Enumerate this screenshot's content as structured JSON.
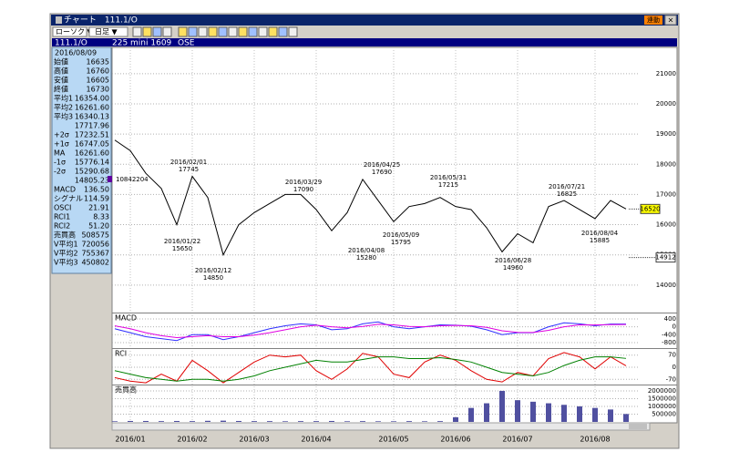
{
  "window": {
    "title": "チャート　111.1/O",
    "sync": "連動",
    "close": "×",
    "chart_kind": "ローソク ▼",
    "period": "日足 ▼"
  },
  "header": {
    "symbol": "111.1/O",
    "contract": "225 mini 1609",
    "exchange": "OSE"
  },
  "info": {
    "date": "2016/08/09",
    "rows": [
      {
        "label": "始値",
        "value": "16635",
        "color": "#000000"
      },
      {
        "label": "高値",
        "value": "16760",
        "color": "#000000"
      },
      {
        "label": "安値",
        "value": "16605",
        "color": "#000000"
      },
      {
        "label": "終値",
        "value": "16730",
        "color": "#000000"
      },
      {
        "label": "平均1",
        "value": "16354.00",
        "color": "#e00000"
      },
      {
        "label": "平均2",
        "value": "16261.60",
        "color": "#0000e0"
      },
      {
        "label": "平均3",
        "value": "16340.13",
        "color": "#008000"
      },
      {
        "value": "17717.96",
        "color": "#000000"
      },
      {
        "label": "+2σ",
        "value": "17232.51",
        "color": "#d000d0"
      },
      {
        "label": "+1σ",
        "value": "16747.05",
        "color": "#e080e0"
      },
      {
        "label": "MA",
        "value": "16261.60",
        "color": "#0000e0"
      },
      {
        "label": "-1σ",
        "value": "15776.14",
        "color": "#e080e0"
      },
      {
        "label": "-2σ",
        "value": "15290.68",
        "color": "#d000d0"
      },
      {
        "value": "14805.23",
        "color": "#000000"
      },
      {
        "label": "MACD",
        "value": "136.50",
        "color": "#0000e0"
      },
      {
        "label": "シグナル",
        "value": "114.59",
        "color": "#d000d0"
      },
      {
        "label": "OSCI",
        "value": "21.91",
        "color": "#000000"
      },
      {
        "label": "RCI1",
        "value": "8.33",
        "color": "#e00000"
      },
      {
        "label": "RCI2",
        "value": "51.20",
        "color": "#008000"
      },
      {
        "label": "売買高",
        "value": "508575",
        "color": "#000000"
      },
      {
        "label": "V平均1",
        "value": "720056",
        "color": "#e00000"
      },
      {
        "label": "V平均2",
        "value": "755367",
        "color": "#0000e0"
      },
      {
        "label": "V平均3",
        "value": "450802",
        "color": "#008000"
      }
    ]
  },
  "chart_data": [
    {
      "type": "line",
      "color": "#000000",
      "categories": [
        null,
        "2016/01",
        null,
        null,
        null,
        "2016/02",
        null,
        null,
        null,
        "2016/03",
        null,
        null,
        null,
        "2016/04",
        null,
        null,
        null,
        null,
        "2016/05",
        null,
        null,
        null,
        "2016/06",
        null,
        null,
        null,
        "2016/07",
        null,
        null,
        null,
        null,
        "2016/08",
        null,
        null
      ],
      "values": [
        18800,
        18450,
        17700,
        17200,
        16000,
        17600,
        16900,
        15000,
        16000,
        16400,
        16700,
        17000,
        17000,
        16500,
        15800,
        16400,
        17500,
        16800,
        16100,
        16600,
        16700,
        16900,
        16600,
        16500,
        15900,
        15100,
        15700,
        15400,
        16600,
        16800,
        16500,
        16200,
        16800,
        16520
      ],
      "ylim": [
        13120,
        21870
      ],
      "yticks": [
        14000,
        15000,
        16000,
        17000,
        18000,
        19000,
        20000,
        21000
      ],
      "grid": true,
      "annotations": [
        {
          "date": "2016/01/22",
          "price": 15650
        },
        {
          "date": "2016/02/01",
          "price": 17745
        },
        {
          "date": "2016/02/12",
          "price": 14850
        },
        {
          "date": "2016/03/29",
          "price": 17090
        },
        {
          "date": "2016/04/08",
          "price": 15280
        },
        {
          "date": "2016/04/25",
          "price": 17690
        },
        {
          "date": "2016/05/09",
          "price": 15795
        },
        {
          "date": "2016/05/31",
          "price": 17215
        },
        {
          "date": "2016/06/28",
          "price": 14960
        },
        {
          "date": "2016/07/21",
          "price": 16825
        },
        {
          "date": "2016/08/04",
          "price": 15885
        }
      ],
      "volume_note": 10842204,
      "price_tags": [
        {
          "value": 16520,
          "color": "#ffff00"
        },
        {
          "value": 14912,
          "color": "#ffffff"
        }
      ]
    },
    {
      "type": "line",
      "title": "MACD",
      "ylim": [
        -1080,
        630
      ],
      "yticks": [
        400,
        0,
        -400,
        -800
      ],
      "series": [
        {
          "color": "#3030ff",
          "values": [
            -100,
            -300,
            -500,
            -600,
            -700,
            -400,
            -400,
            -650,
            -500,
            -300,
            -100,
            50,
            150,
            100,
            -150,
            -100,
            150,
            250,
            0,
            -100,
            0,
            100,
            80,
            30,
            -150,
            -400,
            -300,
            -300,
            0,
            200,
            150,
            50,
            140,
            137
          ]
        },
        {
          "color": "#e000e0",
          "values": [
            50,
            -100,
            -300,
            -450,
            -550,
            -500,
            -450,
            -500,
            -500,
            -420,
            -300,
            -150,
            0,
            80,
            0,
            -50,
            20,
            130,
            100,
            20,
            0,
            50,
            70,
            50,
            -30,
            -200,
            -280,
            -290,
            -180,
            0,
            100,
            90,
            110,
            115
          ]
        }
      ]
    },
    {
      "type": "line",
      "title": "RCI",
      "ylim": [
        -100,
        100
      ],
      "yticks": [
        70,
        0,
        -70
      ],
      "series": [
        {
          "color": "#e00000",
          "values": [
            -60,
            -80,
            -90,
            -40,
            -80,
            40,
            -20,
            -90,
            -30,
            30,
            70,
            60,
            70,
            -20,
            -70,
            -10,
            80,
            60,
            -40,
            -60,
            30,
            70,
            40,
            -20,
            -70,
            -85,
            -30,
            -50,
            50,
            85,
            60,
            -10,
            60,
            8
          ]
        },
        {
          "color": "#008000",
          "values": [
            -20,
            -40,
            -60,
            -70,
            -80,
            -70,
            -70,
            -80,
            -70,
            -50,
            -20,
            0,
            20,
            40,
            30,
            30,
            45,
            60,
            60,
            50,
            50,
            55,
            45,
            30,
            0,
            -30,
            -40,
            -50,
            -30,
            10,
            40,
            60,
            60,
            51
          ]
        }
      ]
    },
    {
      "type": "bar",
      "title": "売買高",
      "color": "#5050a0",
      "ylim": [
        0,
        2290000
      ],
      "yticks": [
        2000000,
        1500000,
        1000000,
        500000
      ],
      "values": [
        40000,
        60000,
        60000,
        50000,
        60000,
        50000,
        70000,
        80000,
        60000,
        50000,
        50000,
        40000,
        50000,
        50000,
        60000,
        40000,
        50000,
        40000,
        40000,
        50000,
        40000,
        50000,
        300000,
        900000,
        1200000,
        2000000,
        1400000,
        1300000,
        1200000,
        1100000,
        1000000,
        900000,
        800000,
        508575
      ]
    }
  ]
}
